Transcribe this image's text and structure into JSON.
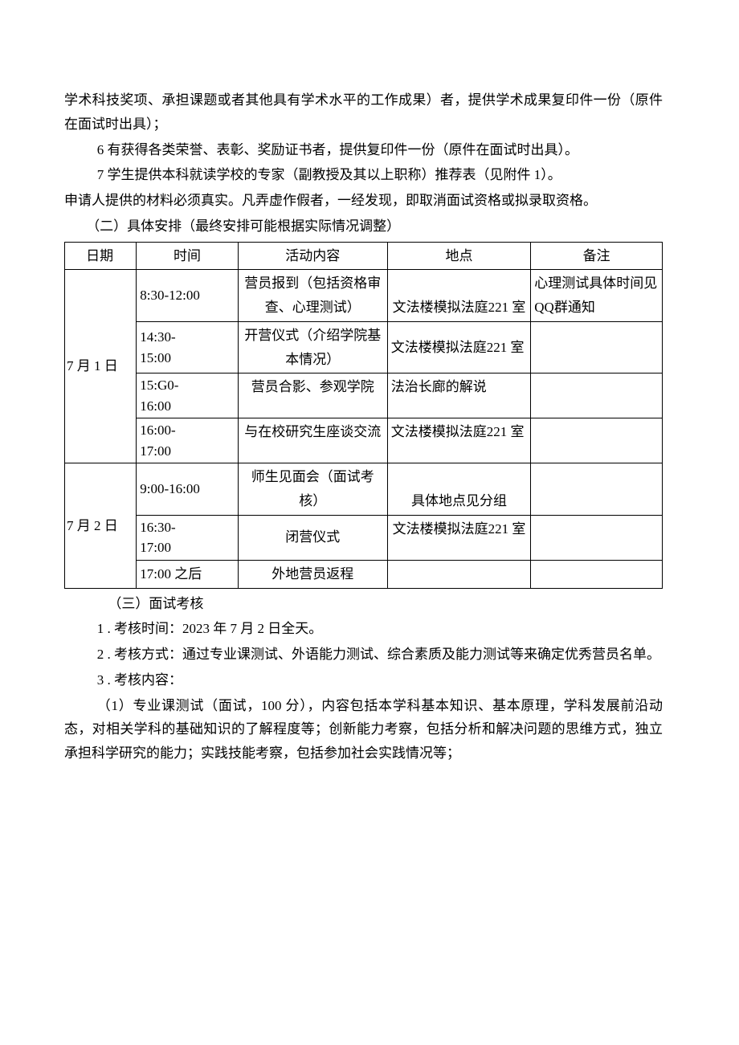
{
  "paragraphs": {
    "p1": "学术科技奖项、承担课题或者其他具有学术水平的工作成果）者，提供学术成果复印件一份（原件在面试时出具）；",
    "p2": "6 有获得各类荣誉、表彰、奖励证书者，提供复印件一份（原件在面试时出具）。",
    "p3": "7 学生提供本科就读学校的专家（副教授及其以上职称）推荐表（见附件 1）。",
    "p4": "申请人提供的材料必须真实。凡弄虚作假者，一经发现，即取消面试资格或拟录取资格。",
    "p5": "（二）具体安排（最终安排可能根据实际情况调整）",
    "p6": "（三）面试考核",
    "p7": "1 . 考核时间：2023 年 7 月 2 日全天。",
    "p8": "2 . 考核方式：通过专业课测试、外语能力测试、综合素质及能力测试等来确定优秀营员名单。",
    "p9": "3 . 考核内容：",
    "p10": "（1）专业课测试（面试，100 分），内容包括本学科基本知识、基本原理，学科发展前沿动态，对相关学科的基础知识的了解程度等；创新能力考察，包括分析和解决问题的思维方式，独立承担科学研究的能力；实践技能考察，包括参加社会实践情况等；"
  },
  "table": {
    "headers": {
      "date": "日期",
      "time": "时间",
      "activity": "活动内容",
      "location": "地点",
      "notes": "备注"
    },
    "rows": [
      {
        "date": "7 月 1 日",
        "time": "8:30-12:00",
        "activity": "营员报到（包括资格审查、心理测试）",
        "location": "文法楼模拟法庭221 室",
        "notes": "心理测试具体时间见 QQ群通知"
      },
      {
        "time_l1": "14:30-",
        "time_l2": "15:00",
        "activity": "开营仪式（介绍学院基本情况）",
        "location": "文法楼模拟法庭221 室",
        "notes": ""
      },
      {
        "time_l1": "15:G0-",
        "time_l2": "16:00",
        "activity": "营员合影、参观学院",
        "location": "法治长廊的解说",
        "notes": ""
      },
      {
        "time_l1": "16:00-",
        "time_l2": "17:00",
        "activity": "与在校研究生座谈交流",
        "location": "文法楼模拟法庭221 室",
        "notes": ""
      },
      {
        "date": "7 月 2 日",
        "time": "9:00-16:00",
        "activity": "师生见面会（面试考核）",
        "location": "具体地点见分组",
        "notes": ""
      },
      {
        "time_l1": "16:30-",
        "time_l2": "17:00",
        "activity": "闭营仪式",
        "location": "文法楼模拟法庭221 室",
        "notes": ""
      },
      {
        "time": "17:00 之后",
        "activity": "外地营员返程",
        "location": "",
        "notes": ""
      }
    ]
  }
}
